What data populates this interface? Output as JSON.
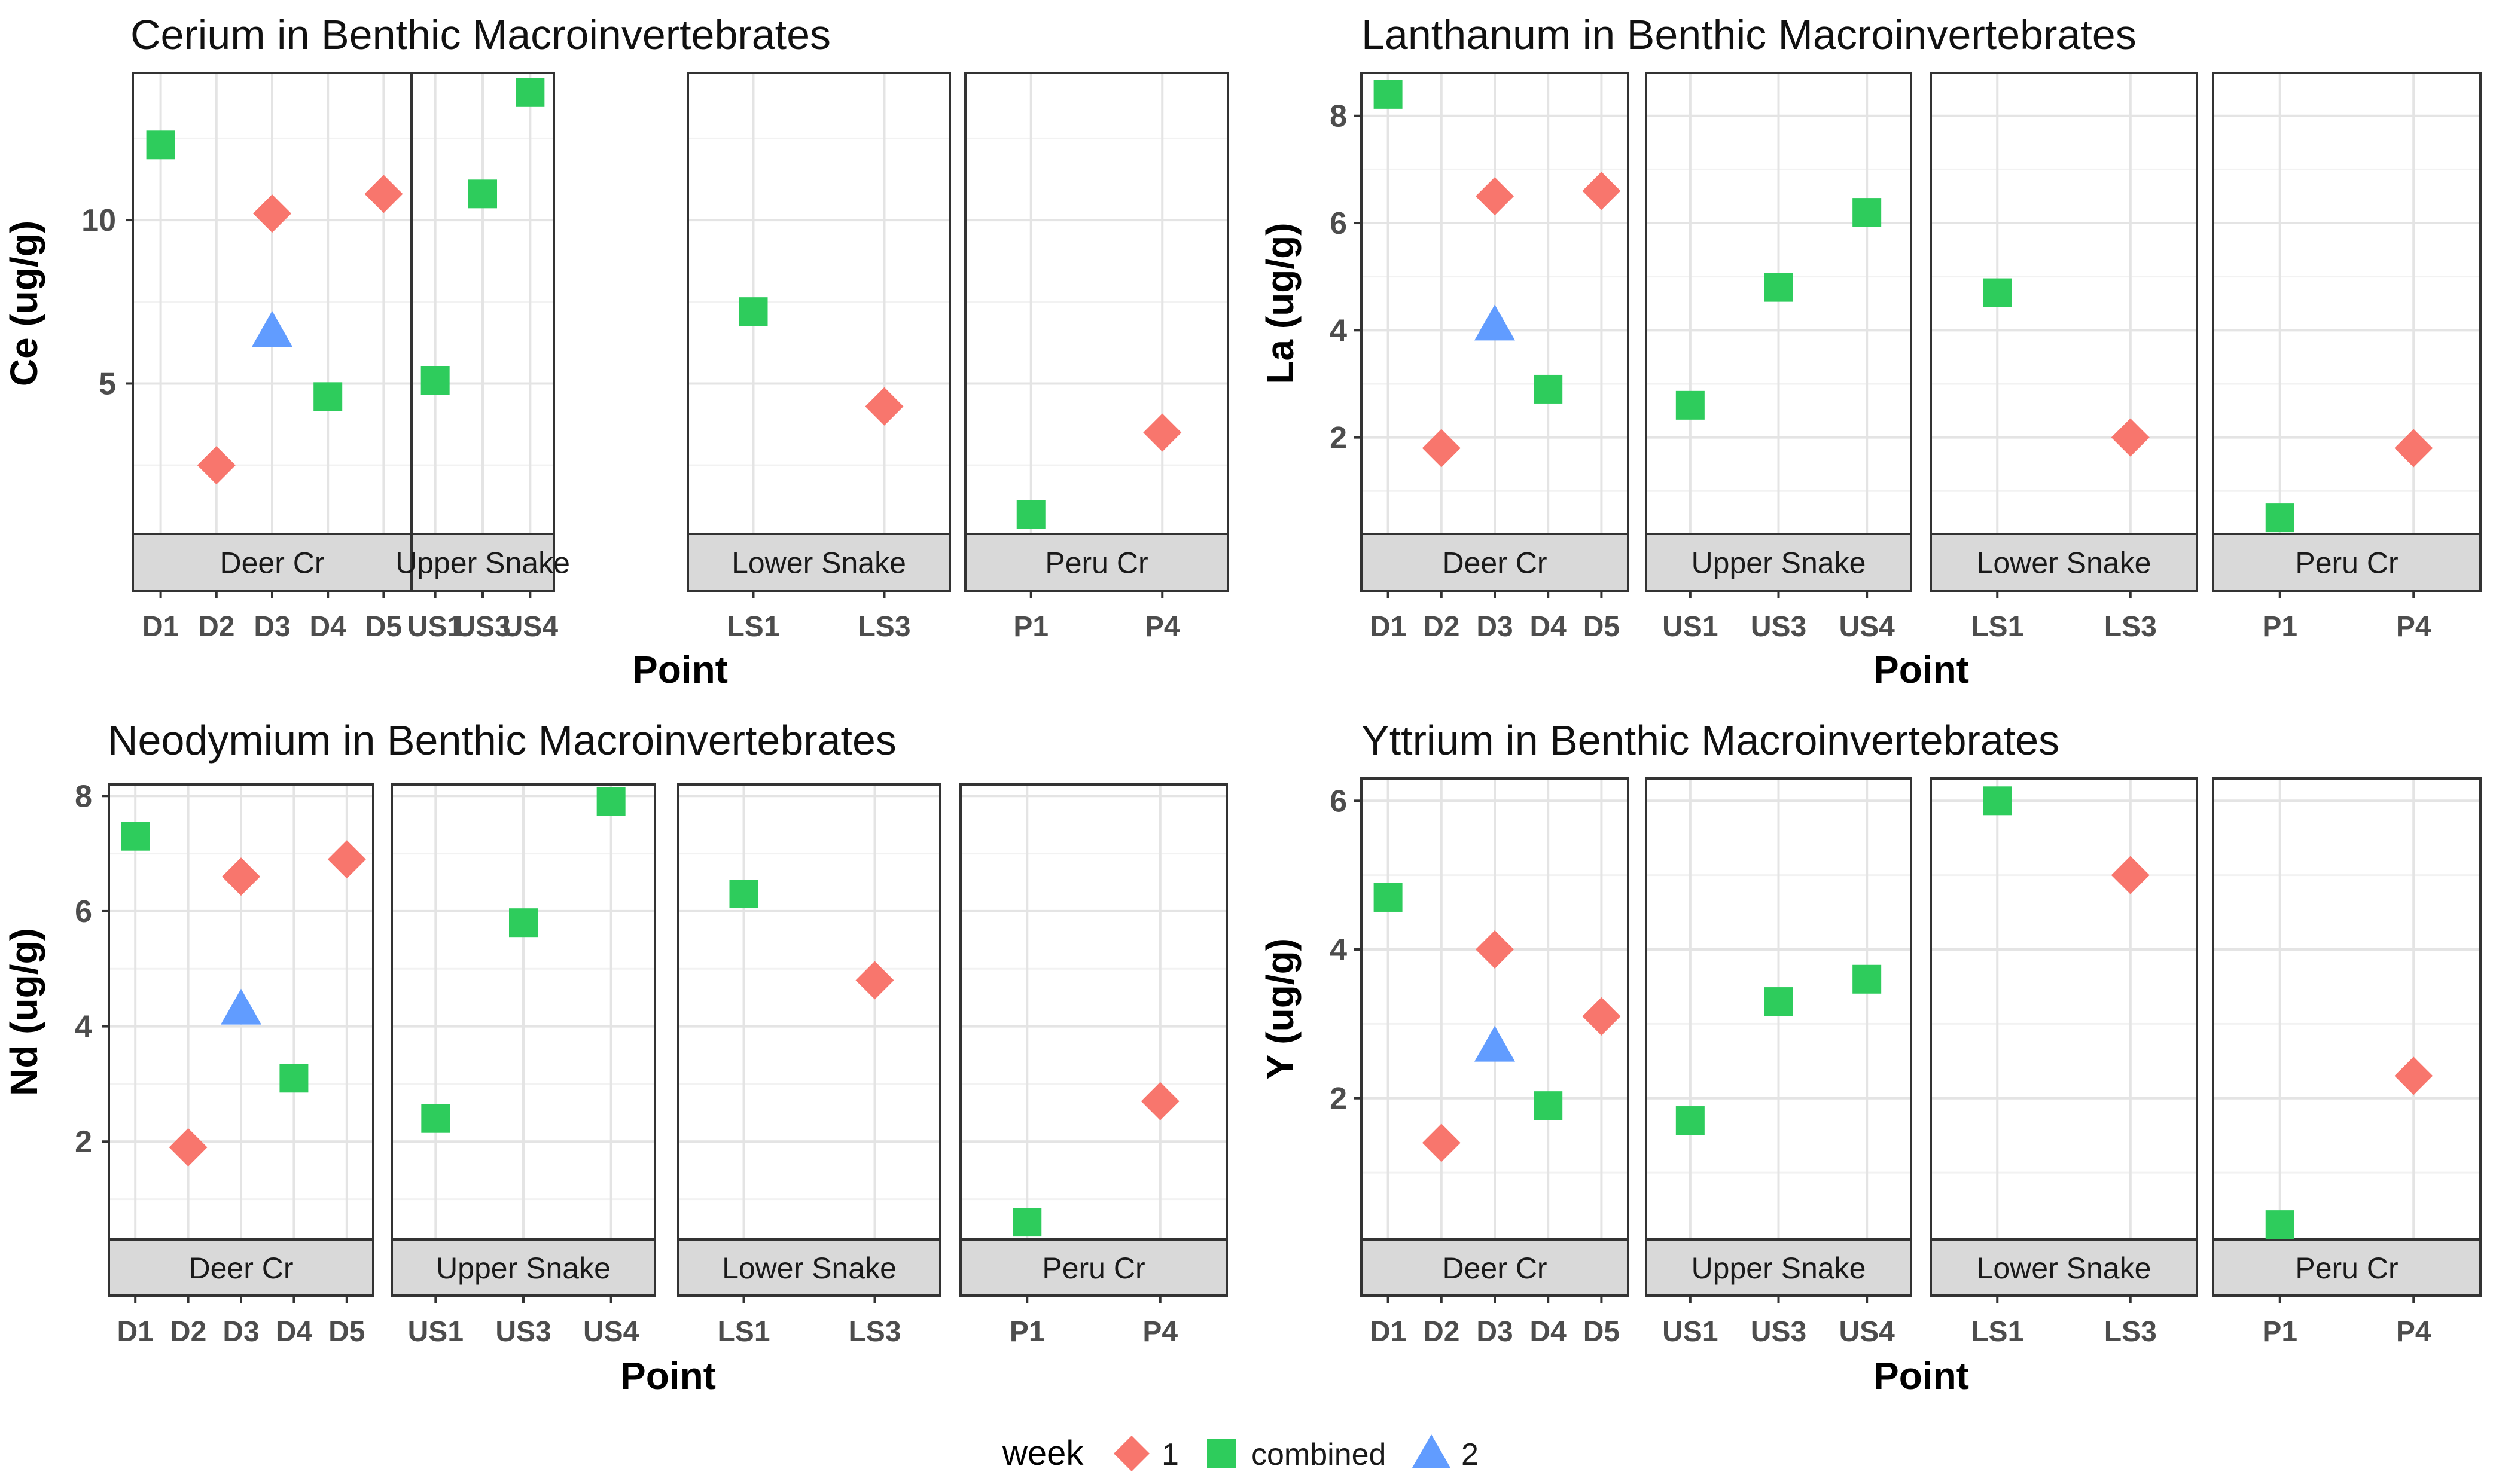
{
  "legend": {
    "title": "week",
    "entries": [
      {
        "label": "1",
        "shape": "diamond",
        "color": "#F8766D"
      },
      {
        "label": "combined",
        "shape": "square",
        "color": "#2ECC5C"
      },
      {
        "label": "2",
        "shape": "triangle",
        "color": "#619CFF"
      }
    ]
  },
  "colors": {
    "1": "#F8766D",
    "combined": "#2ECC5C",
    "2": "#619CFF",
    "strip_bg": "#D9D9D9",
    "panel_border": "#333333",
    "grid_major": "#E4E4E4",
    "grid_minor": "#F2F2F2"
  },
  "chart_data": [
    {
      "type": "scatter",
      "title": "Cerium in Benthic Macroinvertebrates",
      "xlabel": "Point",
      "ylabel": "Ce (ug/g)",
      "ylim": [
        0.4,
        14.5
      ],
      "yticks": [
        5,
        10
      ],
      "grid": true,
      "facets": [
        {
          "name": "Deer Cr",
          "categories": [
            "D1",
            "D2",
            "D3",
            "D4",
            "D5"
          ],
          "points": [
            {
              "x": "D1",
              "y": 12.3,
              "week": "combined"
            },
            {
              "x": "D2",
              "y": 2.5,
              "week": "1"
            },
            {
              "x": "D3",
              "y": 10.2,
              "week": "1"
            },
            {
              "x": "D3",
              "y": 6.6,
              "week": "2"
            },
            {
              "x": "D4",
              "y": 4.6,
              "week": "combined"
            },
            {
              "x": "D5",
              "y": 10.8,
              "week": "1"
            }
          ]
        },
        {
          "name": "Upper Snake",
          "categories": [
            "US1",
            "US3",
            "US4"
          ],
          "points": [
            {
              "x": "US1",
              "y": 5.1,
              "week": "combined"
            },
            {
              "x": "US3",
              "y": 10.8,
              "week": "combined"
            },
            {
              "x": "US4",
              "y": 13.9,
              "week": "combined"
            }
          ]
        },
        {
          "name": "Lower Snake",
          "categories": [
            "LS1",
            "LS3"
          ],
          "points": [
            {
              "x": "LS1",
              "y": 7.2,
              "week": "combined"
            },
            {
              "x": "LS3",
              "y": 4.3,
              "week": "1"
            }
          ]
        },
        {
          "name": "Peru Cr",
          "categories": [
            "P1",
            "P4"
          ],
          "points": [
            {
              "x": "P1",
              "y": 1.0,
              "week": "combined"
            },
            {
              "x": "P4",
              "y": 3.5,
              "week": "1"
            }
          ]
        }
      ]
    },
    {
      "type": "scatter",
      "title": "Lanthanum in Benthic Macroinvertebrates",
      "xlabel": "Point",
      "ylabel": "La (ug/g)",
      "ylim": [
        0.2,
        8.8
      ],
      "yticks": [
        2,
        4,
        6,
        8
      ],
      "grid": true,
      "facets": [
        {
          "name": "Deer Cr",
          "categories": [
            "D1",
            "D2",
            "D3",
            "D4",
            "D5"
          ],
          "points": [
            {
              "x": "D1",
              "y": 8.4,
              "week": "combined"
            },
            {
              "x": "D2",
              "y": 1.8,
              "week": "1"
            },
            {
              "x": "D3",
              "y": 6.5,
              "week": "1"
            },
            {
              "x": "D3",
              "y": 4.1,
              "week": "2"
            },
            {
              "x": "D4",
              "y": 2.9,
              "week": "combined"
            },
            {
              "x": "D5",
              "y": 6.6,
              "week": "1"
            }
          ]
        },
        {
          "name": "Upper Snake",
          "categories": [
            "US1",
            "US3",
            "US4"
          ],
          "points": [
            {
              "x": "US1",
              "y": 2.6,
              "week": "combined"
            },
            {
              "x": "US3",
              "y": 4.8,
              "week": "combined"
            },
            {
              "x": "US4",
              "y": 6.2,
              "week": "combined"
            }
          ]
        },
        {
          "name": "Lower Snake",
          "categories": [
            "LS1",
            "LS3"
          ],
          "points": [
            {
              "x": "LS1",
              "y": 4.7,
              "week": "combined"
            },
            {
              "x": "LS3",
              "y": 2.0,
              "week": "1"
            }
          ]
        },
        {
          "name": "Peru Cr",
          "categories": [
            "P1",
            "P4"
          ],
          "points": [
            {
              "x": "P1",
              "y": 0.5,
              "week": "combined"
            },
            {
              "x": "P4",
              "y": 1.8,
              "week": "1"
            }
          ]
        }
      ]
    },
    {
      "type": "scatter",
      "title": "Neodymium in Benthic Macroinvertebrates",
      "xlabel": "Point",
      "ylabel": "Nd (ug/g)",
      "ylim": [
        0.3,
        8.2
      ],
      "yticks": [
        2,
        4,
        6,
        8
      ],
      "grid": true,
      "facets": [
        {
          "name": "Deer Cr",
          "categories": [
            "D1",
            "D2",
            "D3",
            "D4",
            "D5"
          ],
          "points": [
            {
              "x": "D1",
              "y": 7.3,
              "week": "combined"
            },
            {
              "x": "D2",
              "y": 1.9,
              "week": "1"
            },
            {
              "x": "D3",
              "y": 6.6,
              "week": "1"
            },
            {
              "x": "D3",
              "y": 4.3,
              "week": "2"
            },
            {
              "x": "D4",
              "y": 3.1,
              "week": "combined"
            },
            {
              "x": "D5",
              "y": 6.9,
              "week": "1"
            }
          ]
        },
        {
          "name": "Upper Snake",
          "categories": [
            "US1",
            "US3",
            "US4"
          ],
          "points": [
            {
              "x": "US1",
              "y": 2.4,
              "week": "combined"
            },
            {
              "x": "US3",
              "y": 5.8,
              "week": "combined"
            },
            {
              "x": "US4",
              "y": 7.9,
              "week": "combined"
            }
          ]
        },
        {
          "name": "Lower Snake",
          "categories": [
            "LS1",
            "LS3"
          ],
          "points": [
            {
              "x": "LS1",
              "y": 6.3,
              "week": "combined"
            },
            {
              "x": "LS3",
              "y": 4.8,
              "week": "1"
            }
          ]
        },
        {
          "name": "Peru Cr",
          "categories": [
            "P1",
            "P4"
          ],
          "points": [
            {
              "x": "P1",
              "y": 0.6,
              "week": "combined"
            },
            {
              "x": "P4",
              "y": 2.7,
              "week": "1"
            }
          ]
        }
      ]
    },
    {
      "type": "scatter",
      "title": "Yttrium in Benthic Macroinvertebrates",
      "xlabel": "Point",
      "ylabel": "Y (ug/g)",
      "ylim": [
        0.1,
        6.3
      ],
      "yticks": [
        2,
        4,
        6
      ],
      "grid": true,
      "facets": [
        {
          "name": "Deer Cr",
          "categories": [
            "D1",
            "D2",
            "D3",
            "D4",
            "D5"
          ],
          "points": [
            {
              "x": "D1",
              "y": 4.7,
              "week": "combined"
            },
            {
              "x": "D2",
              "y": 1.4,
              "week": "1"
            },
            {
              "x": "D3",
              "y": 4.0,
              "week": "1"
            },
            {
              "x": "D3",
              "y": 2.7,
              "week": "2"
            },
            {
              "x": "D4",
              "y": 1.9,
              "week": "combined"
            },
            {
              "x": "D5",
              "y": 3.1,
              "week": "1"
            }
          ]
        },
        {
          "name": "Upper Snake",
          "categories": [
            "US1",
            "US3",
            "US4"
          ],
          "points": [
            {
              "x": "US1",
              "y": 1.7,
              "week": "combined"
            },
            {
              "x": "US3",
              "y": 3.3,
              "week": "combined"
            },
            {
              "x": "US4",
              "y": 3.6,
              "week": "combined"
            }
          ]
        },
        {
          "name": "Lower Snake",
          "categories": [
            "LS1",
            "LS3"
          ],
          "points": [
            {
              "x": "LS1",
              "y": 6.0,
              "week": "combined"
            },
            {
              "x": "LS3",
              "y": 5.0,
              "week": "1"
            }
          ]
        },
        {
          "name": "Peru Cr",
          "categories": [
            "P1",
            "P4"
          ],
          "points": [
            {
              "x": "P1",
              "y": 0.3,
              "week": "combined"
            },
            {
              "x": "P4",
              "y": 2.3,
              "week": "1"
            }
          ]
        }
      ]
    }
  ]
}
